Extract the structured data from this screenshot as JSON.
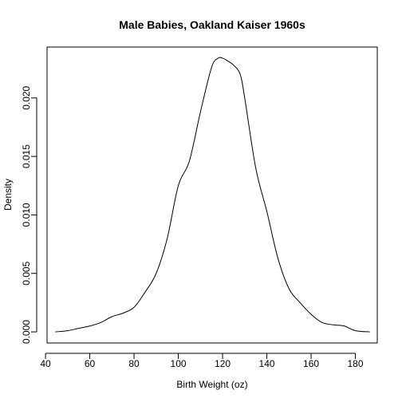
{
  "chart_data": {
    "type": "line",
    "title": "Male Babies, Oakland Kaiser 1960s",
    "xlabel": "Birth Weight (oz)",
    "ylabel": "Density",
    "xlim": [
      40.7,
      189.9
    ],
    "ylim": [
      -0.00095,
      0.02435
    ],
    "xticks": [
      {
        "value": 40,
        "label": "40"
      },
      {
        "value": 60,
        "label": "60"
      },
      {
        "value": 80,
        "label": "80"
      },
      {
        "value": 100,
        "label": "100"
      },
      {
        "value": 120,
        "label": "120"
      },
      {
        "value": 140,
        "label": "140"
      },
      {
        "value": 160,
        "label": "160"
      },
      {
        "value": 180,
        "label": "180"
      }
    ],
    "yticks": [
      {
        "value": 0.0,
        "label": "0.000"
      },
      {
        "value": 0.005,
        "label": "0.005"
      },
      {
        "value": 0.01,
        "label": "0.010"
      },
      {
        "value": 0.015,
        "label": "0.015"
      },
      {
        "value": 0.02,
        "label": "0.020"
      }
    ],
    "grid": false,
    "series": [
      {
        "x": [
          44.4,
          50,
          55,
          60,
          65,
          70,
          75,
          80,
          85,
          90,
          95,
          100,
          105,
          110,
          115,
          118,
          120,
          122,
          125,
          128,
          130,
          135,
          140,
          145,
          150,
          155,
          160,
          165,
          170,
          175,
          180,
          186.5
        ],
        "y": [
          0.0,
          0.0001,
          0.0003,
          0.0005,
          0.0008,
          0.0013,
          0.0016,
          0.0021,
          0.0034,
          0.005,
          0.008,
          0.0125,
          0.0146,
          0.0188,
          0.0226,
          0.0234,
          0.0234,
          0.0232,
          0.0228,
          0.022,
          0.02,
          0.014,
          0.0103,
          0.0063,
          0.0037,
          0.0025,
          0.0015,
          0.0008,
          0.0006,
          0.0005,
          0.0001,
          0.0
        ]
      }
    ]
  }
}
